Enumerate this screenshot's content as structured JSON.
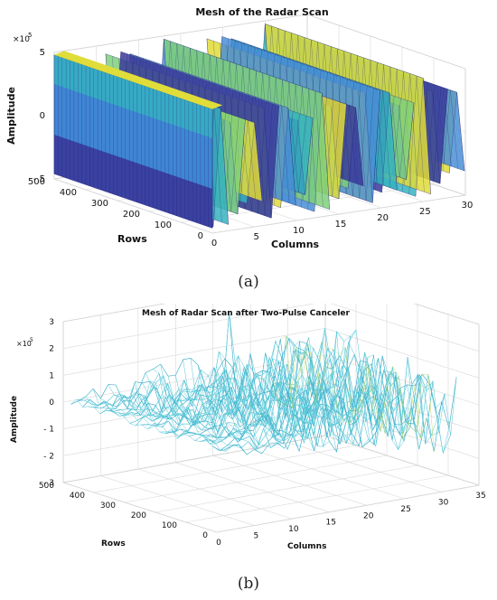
{
  "figure": {
    "captions": [
      "(a)",
      "(b)"
    ]
  },
  "chart_data": [
    {
      "type": "surface",
      "title": "Mesh of the Radar Scan",
      "xlabel": "Columns",
      "ylabel": "Rows",
      "zlabel": "Amplitude",
      "z_multiplier": "×10",
      "z_exponent": "5",
      "x_ticks": [
        "0",
        "5",
        "10",
        "15",
        "20",
        "25",
        "30"
      ],
      "y_ticks": [
        "0",
        "100",
        "200",
        "300",
        "400",
        "500"
      ],
      "z_ticks": [
        "5",
        "0",
        "- 5"
      ],
      "xlim": [
        0,
        30
      ],
      "ylim": [
        0,
        500
      ],
      "zlim": [
        -5,
        5
      ],
      "grid": true,
      "colormap": [
        "#3a3a9a",
        "#4a8fd6",
        "#36b3c0",
        "#7fd07a",
        "#e0dc3a"
      ]
    },
    {
      "type": "surface",
      "title": "Mesh of Radar Scan after Two-Pulse Canceler",
      "xlabel": "Columns",
      "ylabel": "Rows",
      "zlabel": "Amplitude",
      "z_multiplier": "×10",
      "z_exponent": "5",
      "x_ticks": [
        "0",
        "5",
        "10",
        "15",
        "20",
        "25",
        "30",
        "35"
      ],
      "y_ticks": [
        "0",
        "100",
        "200",
        "300",
        "400",
        "500"
      ],
      "z_ticks": [
        "3",
        "2",
        "1",
        "0",
        "- 1",
        "- 2",
        "- 3"
      ],
      "xlim": [
        0,
        35
      ],
      "ylim": [
        0,
        500
      ],
      "zlim": [
        -3,
        3
      ],
      "grid": true,
      "colormap": [
        "#2fa9c8",
        "#56c7d8",
        "#8fd39a",
        "#c9dc6a"
      ]
    }
  ]
}
